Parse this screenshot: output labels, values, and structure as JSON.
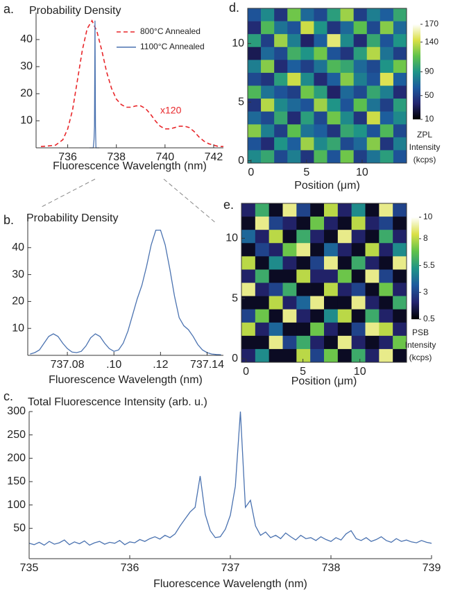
{
  "chart_data": [
    {
      "type": "line",
      "panel_label": "a.",
      "title": "Probability Density",
      "xlabel": "Fluorescence Wavelength (nm)",
      "xlim": [
        734.7,
        742.4
      ],
      "xticks": [
        736,
        738,
        740,
        742
      ],
      "ylim": [
        0,
        50
      ],
      "yticks": [
        10,
        20,
        30,
        40
      ],
      "legend": "upper right",
      "annotation": "x120",
      "series": [
        {
          "name": "800°C Annealed",
          "color": "#e8262a",
          "style": "dashed",
          "x": [
            734.9,
            735.2,
            735.5,
            735.8,
            736.0,
            736.2,
            736.4,
            736.6,
            736.8,
            737.0,
            737.2,
            737.4,
            737.6,
            737.8,
            738.0,
            738.2,
            738.4,
            738.6,
            738.8,
            739.0,
            739.2,
            739.4,
            739.6,
            739.8,
            740.0,
            740.2,
            740.4,
            740.6,
            740.8,
            741.0,
            741.2,
            741.4,
            741.6,
            741.8,
            742.0,
            742.2,
            742.4
          ],
          "values": [
            0.5,
            0.7,
            1,
            3,
            7,
            14,
            25,
            36,
            44,
            47,
            43,
            36,
            28,
            22,
            18,
            16,
            15,
            15,
            15.5,
            15.5,
            14.5,
            12.5,
            10,
            8,
            7,
            7,
            7.5,
            8,
            8,
            7.5,
            6,
            4,
            2.5,
            1.5,
            1,
            0.5,
            0.5
          ]
        },
        {
          "name": "1100°C Annealed",
          "color": "#4a72b0",
          "style": "solid",
          "x": [
            736.9,
            737.05,
            737.08,
            737.1,
            737.12,
            737.14,
            737.16,
            737.3
          ],
          "values": [
            0,
            0,
            3,
            8,
            47,
            8,
            0,
            0
          ]
        }
      ]
    },
    {
      "type": "line",
      "panel_label": "b.",
      "title": "Probability Density",
      "xlabel": "Fluorescence Wavelength (nm)",
      "xlim": [
        737.063,
        737.147
      ],
      "xticks": [
        737.08,
        {
          "value": 737.1,
          "label": ".10"
        },
        {
          "value": 737.12,
          "label": ".12"
        },
        737.14
      ],
      "ylim": [
        0,
        50
      ],
      "yticks": [
        10,
        20,
        30,
        40
      ],
      "color": "#4a72b0",
      "x": [
        737.064,
        737.066,
        737.068,
        737.07,
        737.072,
        737.074,
        737.076,
        737.078,
        737.08,
        737.082,
        737.084,
        737.086,
        737.088,
        737.09,
        737.092,
        737.094,
        737.096,
        737.098,
        737.1,
        737.102,
        737.104,
        737.106,
        737.108,
        737.11,
        737.112,
        737.114,
        737.116,
        737.118,
        737.12,
        737.122,
        737.124,
        737.126,
        737.128,
        737.13,
        737.132,
        737.134,
        737.136,
        737.138,
        737.14,
        737.142,
        737.144,
        737.146
      ],
      "values": [
        0.5,
        1,
        2,
        4.5,
        7,
        8,
        7,
        4.5,
        2.5,
        1.2,
        1,
        1.5,
        3.5,
        6.5,
        8,
        7,
        4.5,
        2.5,
        1.5,
        2,
        4.5,
        9,
        15,
        21,
        26,
        33,
        41,
        46.5,
        46.5,
        41,
        32,
        22,
        14,
        11,
        9.5,
        7,
        4,
        2,
        1,
        0.5,
        0.3,
        0.2
      ]
    },
    {
      "type": "line",
      "panel_label": "c.",
      "title": "Total Fluorescence Intensity (arb. u.)",
      "xlabel": "Fluorescence Wavelength (nm)",
      "xlim": [
        735,
        739
      ],
      "xticks": [
        735,
        736,
        737,
        738,
        739
      ],
      "ylim": [
        -15,
        300
      ],
      "yticks": [
        50,
        100,
        150,
        200,
        250,
        300
      ],
      "color": "#4a72b0",
      "x": [
        735.0,
        735.05,
        735.1,
        735.15,
        735.2,
        735.25,
        735.3,
        735.35,
        735.4,
        735.45,
        735.5,
        735.55,
        735.6,
        735.65,
        735.7,
        735.75,
        735.8,
        735.85,
        735.9,
        735.95,
        736.0,
        736.05,
        736.1,
        736.15,
        736.2,
        736.25,
        736.3,
        736.35,
        736.4,
        736.45,
        736.5,
        736.55,
        736.6,
        736.65,
        736.7,
        736.75,
        736.8,
        736.85,
        736.9,
        736.95,
        737.0,
        737.05,
        737.1,
        737.15,
        737.2,
        737.25,
        737.3,
        737.35,
        737.4,
        737.45,
        737.5,
        737.55,
        737.6,
        737.65,
        737.7,
        737.75,
        737.8,
        737.85,
        737.9,
        737.95,
        738.0,
        738.05,
        738.1,
        738.15,
        738.2,
        738.25,
        738.3,
        738.35,
        738.4,
        738.45,
        738.5,
        738.55,
        738.6,
        738.65,
        738.7,
        738.75,
        738.8,
        738.85,
        738.9,
        738.95,
        739.0
      ],
      "values": [
        18,
        15,
        20,
        14,
        22,
        16,
        19,
        25,
        15,
        21,
        17,
        23,
        14,
        19,
        22,
        16,
        20,
        18,
        24,
        15,
        21,
        19,
        26,
        22,
        28,
        32,
        27,
        35,
        30,
        38,
        55,
        70,
        85,
        95,
        162,
        80,
        45,
        30,
        32,
        48,
        78,
        140,
        300,
        95,
        110,
        55,
        35,
        42,
        30,
        35,
        28,
        40,
        32,
        25,
        35,
        28,
        30,
        24,
        32,
        26,
        22,
        30,
        25,
        38,
        45,
        28,
        24,
        30,
        22,
        26,
        32,
        24,
        20,
        28,
        22,
        25,
        21,
        19,
        24,
        20,
        18
      ]
    },
    {
      "type": "heatmap",
      "panel_label": "d.",
      "xlabel": "Position (μm)",
      "colorbar_label": [
        "ZPL",
        "Intensity",
        "(kcps)"
      ],
      "xlim": [
        -0.3,
        14
      ],
      "xticks": [
        0,
        5,
        10
      ],
      "ylim": [
        -0.2,
        13
      ],
      "yticks": [
        0,
        5,
        10
      ],
      "clim": [
        10,
        170
      ],
      "cticks": [
        10,
        50,
        90,
        140,
        170
      ],
      "colormap": [
        "#000000",
        "#23246e",
        "#1d5a9e",
        "#1f9487",
        "#5fc24a",
        "#dbe046",
        "#ffffff"
      ],
      "z": [
        [
          60,
          85,
          45,
          120,
          70,
          55,
          95,
          130,
          50,
          80,
          65,
          100
        ],
        [
          40,
          110,
          75,
          60,
          140,
          90,
          45,
          70,
          115,
          55,
          125,
          70
        ],
        [
          95,
          50,
          130,
          80,
          35,
          65,
          150,
          85,
          40,
          100,
          60,
          90
        ],
        [
          30,
          70,
          55,
          105,
          90,
          120,
          60,
          45,
          95,
          135,
          75,
          50
        ],
        [
          80,
          125,
          40,
          65,
          50,
          75,
          110,
          100,
          70,
          55,
          90,
          120
        ],
        [
          55,
          45,
          95,
          140,
          85,
          40,
          65,
          125,
          80,
          60,
          145,
          65
        ],
        [
          110,
          75,
          60,
          50,
          120,
          95,
          35,
          70,
          55,
          100,
          80,
          40
        ],
        [
          45,
          135,
          85,
          70,
          60,
          130,
          90,
          60,
          115,
          75,
          50,
          95
        ],
        [
          70,
          55,
          100,
          40,
          95,
          55,
          120,
          85,
          45,
          140,
          65,
          85
        ],
        [
          125,
          80,
          50,
          115,
          75,
          65,
          45,
          100,
          90,
          60,
          110,
          55
        ],
        [
          60,
          40,
          90,
          65,
          130,
          85,
          100,
          55,
          70,
          125,
          45,
          80
        ],
        [
          85,
          100,
          55,
          80,
          45,
          110,
          60,
          120,
          50,
          75,
          95,
          60
        ]
      ]
    },
    {
      "type": "heatmap",
      "panel_label": "e.",
      "xlabel": "Position (μm)",
      "colorbar_label": [
        "PSB",
        "Intensity",
        "(kcps)"
      ],
      "xlim": [
        -0.4,
        14.1
      ],
      "xticks": [
        0,
        5,
        10
      ],
      "ylim": [
        -0.3,
        12.9
      ],
      "yticks": [
        0,
        5,
        10
      ],
      "clim": [
        0.5,
        10
      ],
      "cticks": [
        0.5,
        3,
        5.5,
        8,
        10
      ],
      "colormap": [
        "#000000",
        "#23246e",
        "#1d5a9e",
        "#1f9487",
        "#5fc24a",
        "#dbe046",
        "#ffffff"
      ],
      "z": [
        [
          2,
          6,
          1,
          9,
          3,
          1,
          8,
          2,
          5,
          1,
          9,
          3
        ],
        [
          1,
          9,
          3,
          2,
          1,
          7,
          2,
          1,
          8,
          2,
          3,
          1
        ],
        [
          4,
          2,
          8,
          1,
          6,
          2,
          1,
          9,
          2,
          1,
          6,
          2
        ],
        [
          1,
          3,
          2,
          7,
          9,
          1,
          4,
          2,
          1,
          8,
          2,
          5
        ],
        [
          8,
          1,
          5,
          2,
          1,
          3,
          9,
          1,
          6,
          2,
          1,
          9
        ],
        [
          2,
          6,
          1,
          1,
          8,
          2,
          2,
          7,
          1,
          9,
          3,
          1
        ],
        [
          9,
          2,
          3,
          6,
          1,
          1,
          8,
          2,
          3,
          1,
          7,
          2
        ],
        [
          1,
          1,
          8,
          2,
          4,
          9,
          1,
          1,
          9,
          2,
          1,
          6
        ],
        [
          3,
          7,
          1,
          9,
          2,
          1,
          5,
          8,
          1,
          6,
          2,
          1
        ],
        [
          8,
          2,
          4,
          1,
          1,
          7,
          2,
          1,
          3,
          9,
          8,
          2
        ],
        [
          1,
          1,
          9,
          3,
          6,
          2,
          1,
          9,
          2,
          1,
          2,
          7
        ],
        [
          2,
          5,
          1,
          1,
          8,
          3,
          7,
          1,
          6,
          2,
          9,
          1
        ]
      ]
    }
  ]
}
